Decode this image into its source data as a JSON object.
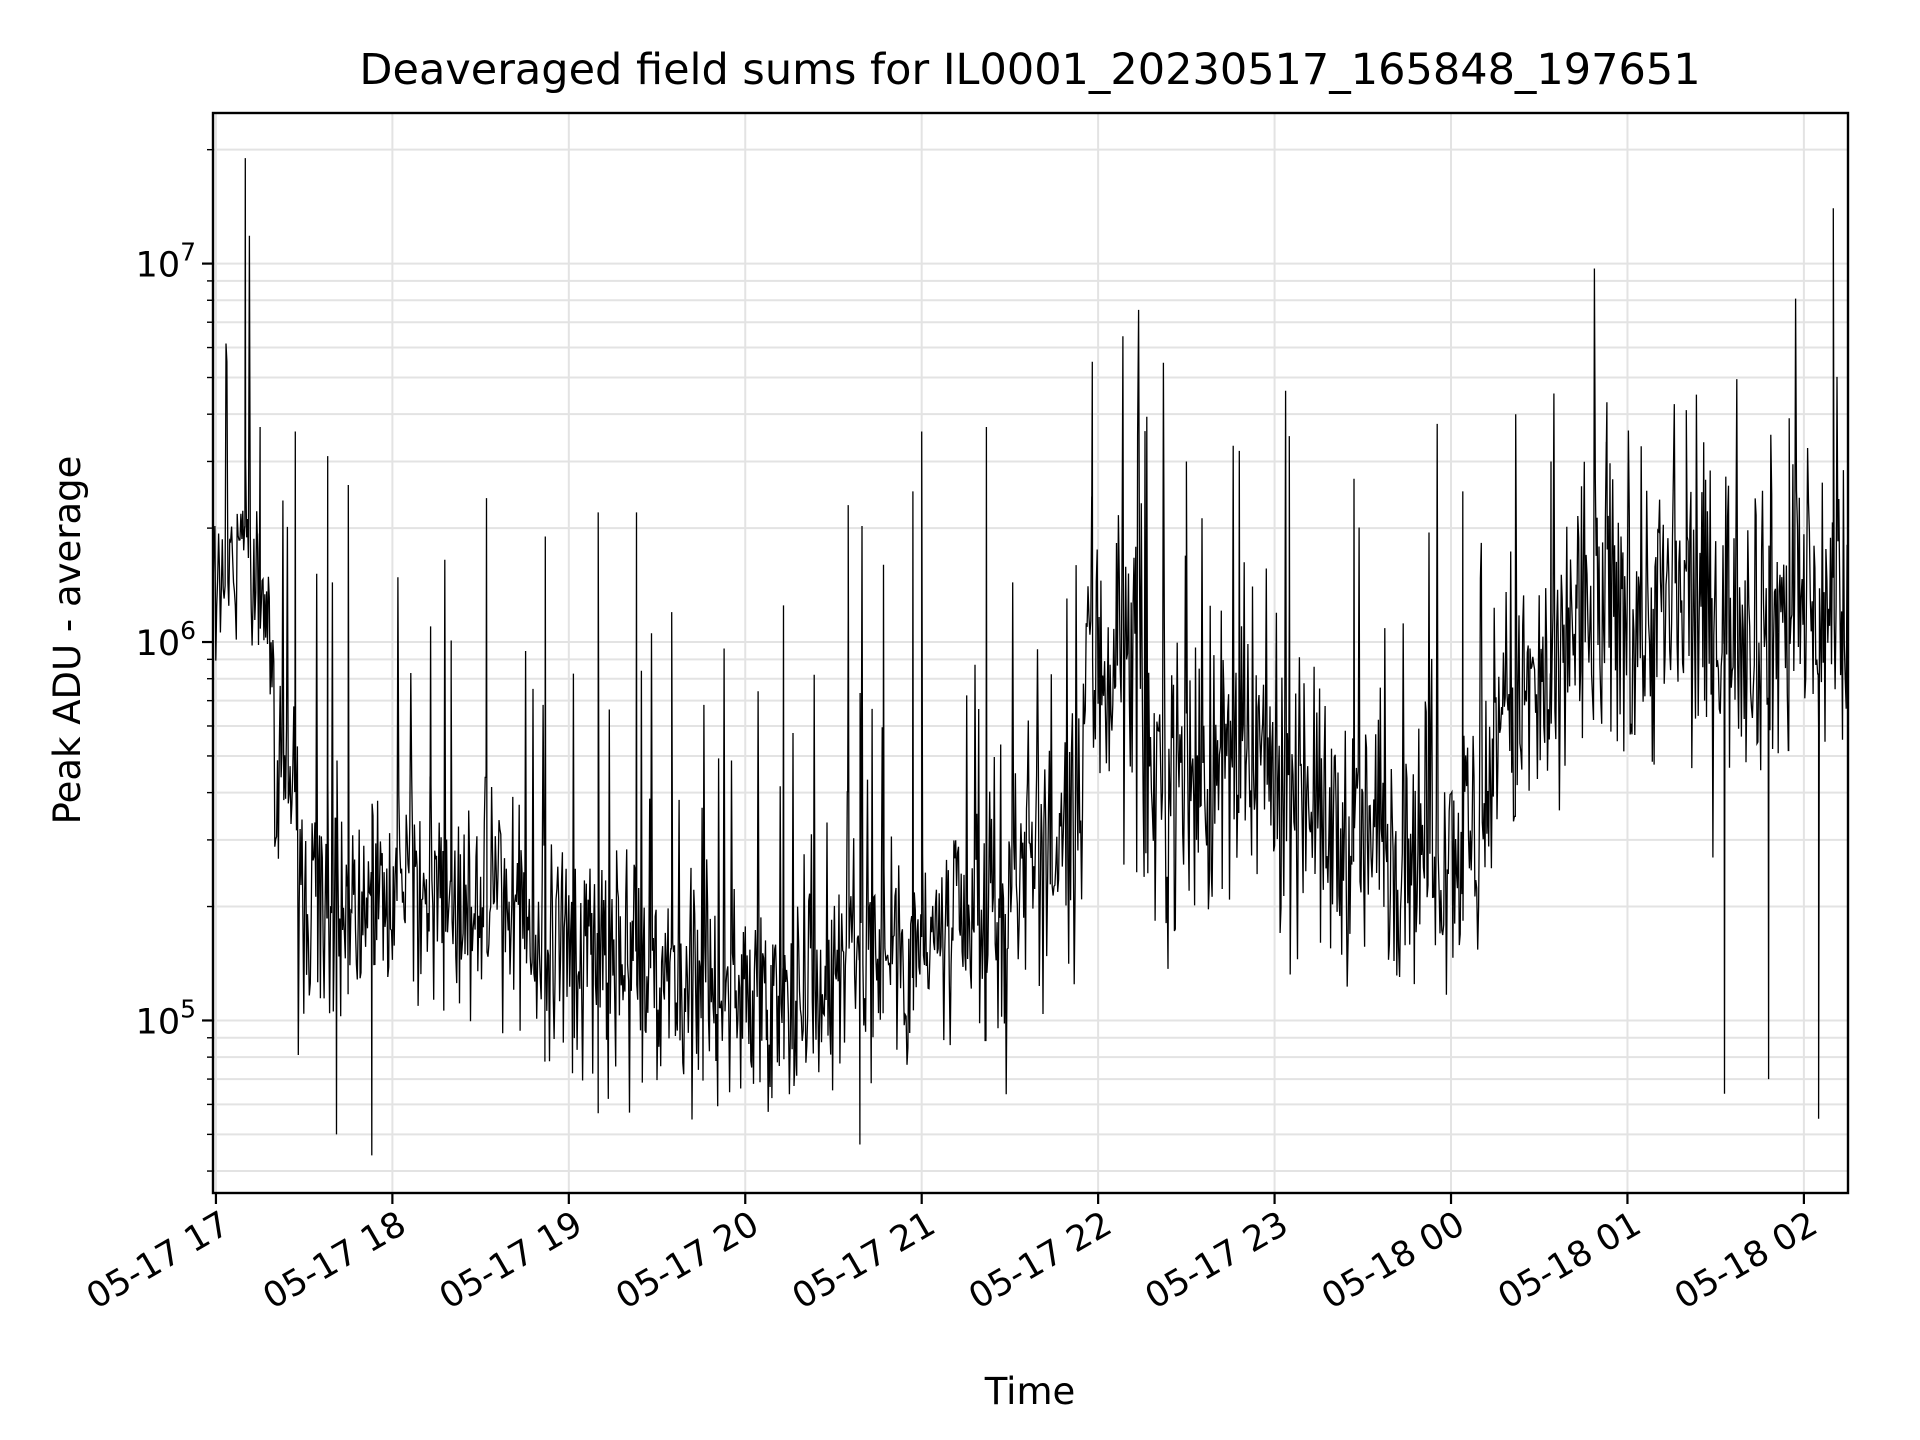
{
  "chart_data": {
    "type": "line",
    "title": "Deaveraged field sums for IL0001_20230517_165848_197651",
    "xlabel": "Time",
    "ylabel": "Peak ADU - average",
    "x_scale": "time",
    "y_scale": "log",
    "xlim": [
      "2023-05-17 16:59",
      "2023-05-18 02:15"
    ],
    "ylim": [
      35000,
      25000000
    ],
    "grid": "on (major and minor)",
    "x_ticks": [
      "05-17 17",
      "05-17 18",
      "05-17 19",
      "05-17 20",
      "05-17 21",
      "05-17 22",
      "05-17 23",
      "05-18 00",
      "05-18 01",
      "05-18 02"
    ],
    "y_ticks": [
      100000,
      1000000,
      10000000
    ],
    "y_tick_labels": [
      {
        "base": "10",
        "exp": "5"
      },
      {
        "base": "10",
        "exp": "6"
      },
      {
        "base": "10",
        "exp": "7"
      }
    ],
    "line_color": "#000000",
    "segments": [
      {
        "start": "2023-05-17 16:59",
        "end": "2023-05-17 17:05",
        "median": 1500000,
        "spread": 0.35
      },
      {
        "start": "2023-05-17 17:05",
        "end": "2023-05-17 17:12",
        "median": 1900000,
        "spread": 0.45
      },
      {
        "start": "2023-05-17 17:12",
        "end": "2023-05-17 17:20",
        "median": 1200000,
        "spread": 0.45
      },
      {
        "start": "2023-05-17 17:20",
        "end": "2023-05-17 17:28",
        "median": 500000,
        "spread": 0.45
      },
      {
        "start": "2023-05-17 17:28",
        "end": "2023-05-17 18:00",
        "median": 210000,
        "spread": 0.5
      },
      {
        "start": "2023-05-17 18:00",
        "end": "2023-05-17 18:45",
        "median": 220000,
        "spread": 0.5
      },
      {
        "start": "2023-05-17 18:45",
        "end": "2023-05-17 19:30",
        "median": 150000,
        "spread": 0.5
      },
      {
        "start": "2023-05-17 19:30",
        "end": "2023-05-17 20:30",
        "median": 120000,
        "spread": 0.45
      },
      {
        "start": "2023-05-17 20:30",
        "end": "2023-05-17 21:30",
        "median": 160000,
        "spread": 0.5
      },
      {
        "start": "2023-05-17 21:30",
        "end": "2023-05-17 21:55",
        "median": 280000,
        "spread": 0.55
      },
      {
        "start": "2023-05-17 21:55",
        "end": "2023-05-17 22:15",
        "median": 900000,
        "spread": 0.7
      },
      {
        "start": "2023-05-17 22:15",
        "end": "2023-05-17 23:15",
        "median": 450000,
        "spread": 0.65
      },
      {
        "start": "2023-05-17 23:15",
        "end": "2023-05-18 00:15",
        "median": 300000,
        "spread": 0.55
      },
      {
        "start": "2023-05-18 00:15",
        "end": "2023-05-18 00:40",
        "median": 700000,
        "spread": 0.65
      },
      {
        "start": "2023-05-18 00:40",
        "end": "2023-05-18 02:15",
        "median": 1200000,
        "spread": 0.65
      }
    ],
    "spikes": [
      {
        "x": "2023-05-17 17:10",
        "y": 19000000
      },
      {
        "x": "2023-05-17 17:15",
        "y": 3700000
      },
      {
        "x": "2023-05-17 17:27",
        "y": 3600000
      },
      {
        "x": "2023-05-17 17:38",
        "y": 3100000
      },
      {
        "x": "2023-05-17 17:41",
        "y": 50000
      },
      {
        "x": "2023-05-17 17:45",
        "y": 2600000
      },
      {
        "x": "2023-05-17 17:53",
        "y": 44000
      },
      {
        "x": "2023-05-17 18:13",
        "y": 1100000
      },
      {
        "x": "2023-05-17 18:20",
        "y": 810000
      },
      {
        "x": "2023-05-17 18:32",
        "y": 2400000
      },
      {
        "x": "2023-05-17 18:52",
        "y": 1900000
      },
      {
        "x": "2023-05-17 19:10",
        "y": 2200000
      },
      {
        "x": "2023-05-17 19:23",
        "y": 2200000
      },
      {
        "x": "2023-05-17 19:35",
        "y": 1200000
      },
      {
        "x": "2023-05-17 20:13",
        "y": 1250000
      },
      {
        "x": "2023-05-17 20:35",
        "y": 2300000
      },
      {
        "x": "2023-05-17 20:39",
        "y": 47000
      },
      {
        "x": "2023-05-17 20:47",
        "y": 1600000
      },
      {
        "x": "2023-05-17 20:57",
        "y": 2500000
      },
      {
        "x": "2023-05-17 21:00",
        "y": 3600000
      },
      {
        "x": "2023-05-17 21:22",
        "y": 3700000
      },
      {
        "x": "2023-05-17 21:58",
        "y": 5500000
      },
      {
        "x": "2023-05-17 22:30",
        "y": 3000000
      },
      {
        "x": "2023-05-17 22:48",
        "y": 3200000
      },
      {
        "x": "2023-05-17 23:05",
        "y": 3500000
      },
      {
        "x": "2023-05-17 23:27",
        "y": 2700000
      },
      {
        "x": "2023-05-18 00:04",
        "y": 2500000
      },
      {
        "x": "2023-05-18 00:22",
        "y": 4000000
      },
      {
        "x": "2023-05-18 00:34",
        "y": 3000000
      },
      {
        "x": "2023-05-18 00:53",
        "y": 4300000
      },
      {
        "x": "2023-05-18 01:20",
        "y": 4100000
      },
      {
        "x": "2023-05-18 01:33",
        "y": 64000
      },
      {
        "x": "2023-05-18 01:48",
        "y": 70000
      },
      {
        "x": "2023-05-18 01:55",
        "y": 3900000
      },
      {
        "x": "2023-05-18 02:05",
        "y": 55000
      },
      {
        "x": "2023-05-18 02:10",
        "y": 14000000
      }
    ]
  }
}
